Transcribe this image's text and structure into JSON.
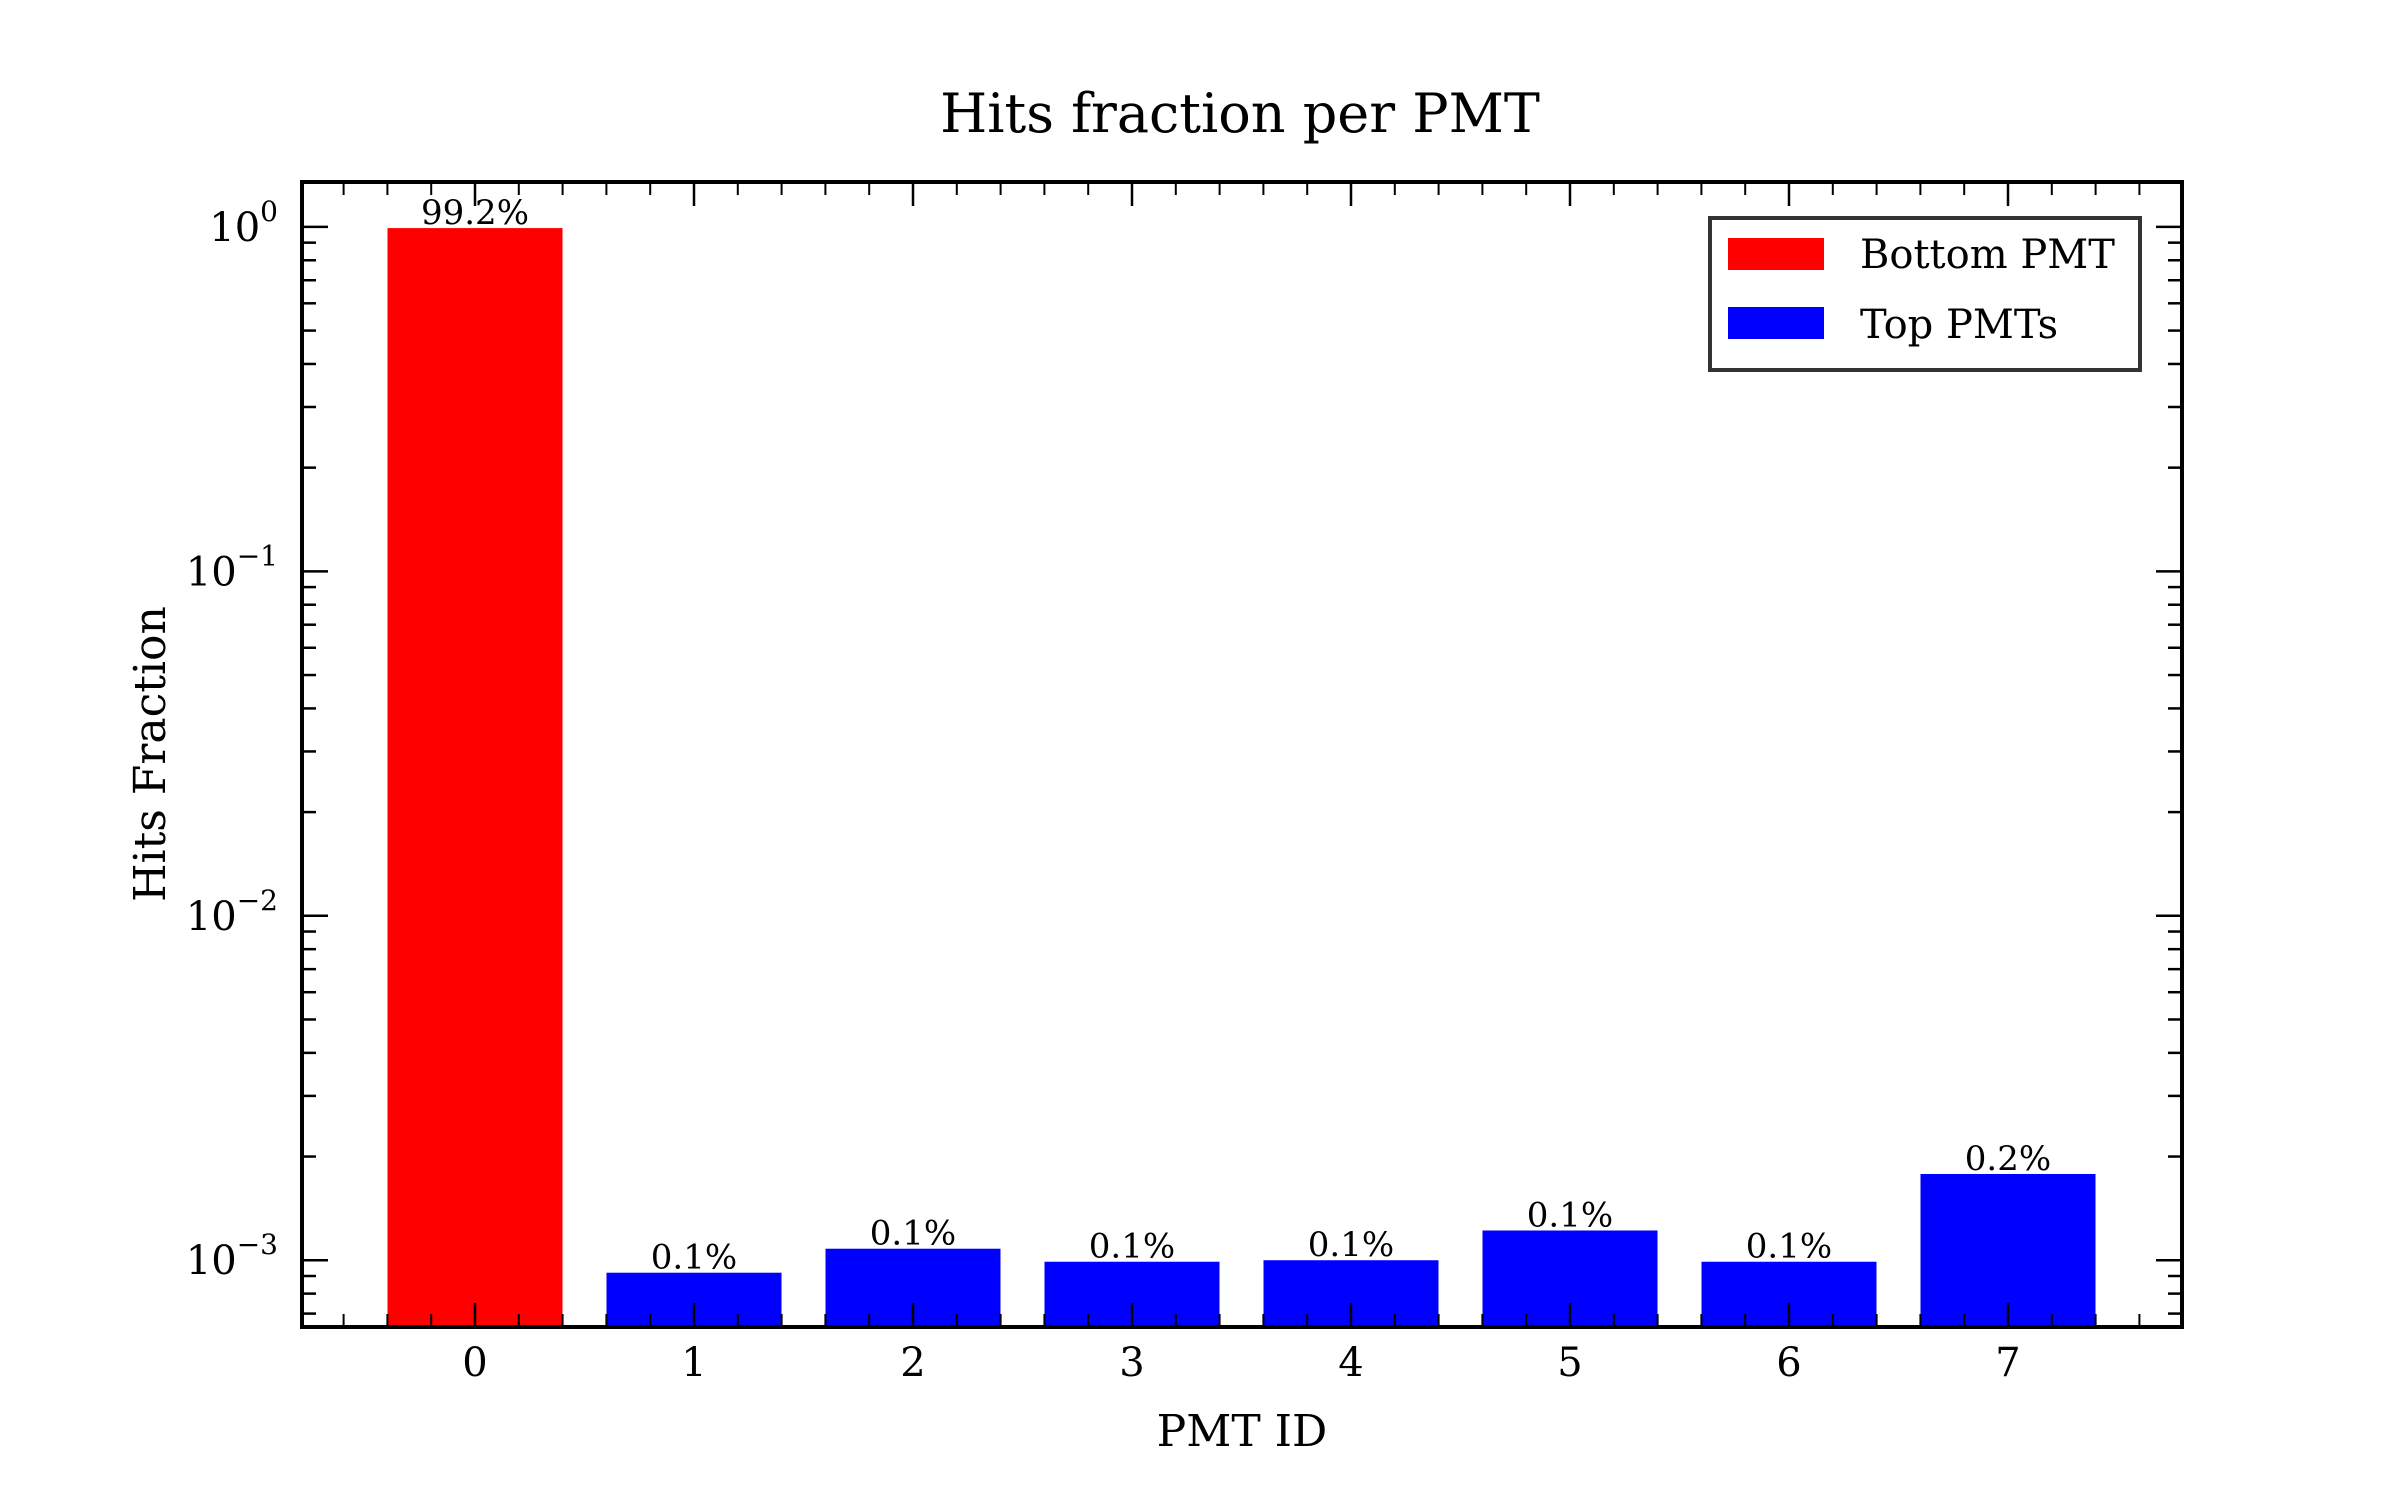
{
  "chart_data": {
    "type": "bar",
    "title": "Hits fraction per PMT",
    "xlabel": "PMT ID",
    "ylabel": "Hits Fraction",
    "yscale": "log",
    "ylim": [
      0.00064,
      1.35
    ],
    "y_ticks": [
      {
        "value": 1,
        "base": "10",
        "exp": "0"
      },
      {
        "value": 0.1,
        "base": "10",
        "exp": "−1"
      },
      {
        "value": 0.01,
        "base": "10",
        "exp": "−2"
      },
      {
        "value": 0.001,
        "base": "10",
        "exp": "−3"
      }
    ],
    "categories": [
      "0",
      "1",
      "2",
      "3",
      "4",
      "5",
      "6",
      "7"
    ],
    "values": [
      0.992,
      0.00092,
      0.00108,
      0.00099,
      0.001,
      0.00122,
      0.00099,
      0.00178
    ],
    "bar_labels": [
      "99.2%",
      "0.1%",
      "0.1%",
      "0.1%",
      "0.1%",
      "0.1%",
      "0.1%",
      "0.2%"
    ],
    "bar_series": [
      0,
      1,
      1,
      1,
      1,
      1,
      1,
      1
    ],
    "series": [
      {
        "name": "Bottom PMT",
        "color": "#ff0000"
      },
      {
        "name": "Top PMTs",
        "color": "#0000ff"
      }
    ],
    "legend_position": "top-right",
    "grid": false
  }
}
